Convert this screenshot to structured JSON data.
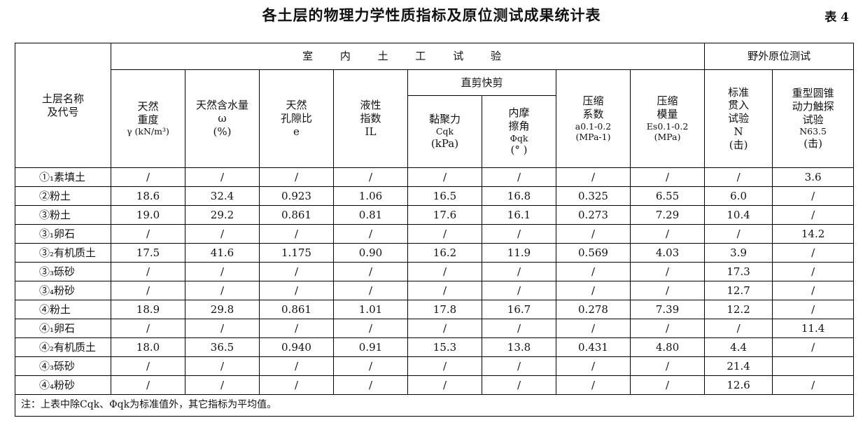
{
  "title": "各土层的物理力学性质指标及原位测试成果统计表",
  "table_number": "表 4",
  "header": {
    "layer_col": [
      "土层名称",
      "及代号"
    ],
    "indoor_group": "室 内 土 工 试 验",
    "field_group": "野外原位测试",
    "shear_group": "直剪快剪",
    "columns": [
      {
        "lines": [
          "天然",
          "重度",
          "γ (kN/m³)"
        ]
      },
      {
        "lines": [
          "天然含水量",
          "ω",
          "(%)"
        ]
      },
      {
        "lines": [
          "天然",
          "孔隙比",
          "e"
        ]
      },
      {
        "lines": [
          "液性",
          "指数",
          "IL"
        ]
      },
      {
        "lines": [
          "黏聚力",
          "Cqk",
          "(kPa)"
        ]
      },
      {
        "lines": [
          "内摩",
          "擦角",
          "Φqk",
          "(° )"
        ]
      },
      {
        "lines": [
          "压缩",
          "系数",
          "a0.1-0.2",
          "(MPa-1)"
        ]
      },
      {
        "lines": [
          "压缩",
          "模量",
          "Es0.1-0.2",
          "(MPa)"
        ]
      },
      {
        "lines": [
          "标准",
          "贯入",
          "试验",
          "N",
          "(击)"
        ]
      },
      {
        "lines": [
          "重型圆锥",
          "动力触探",
          "试验",
          "N63.5",
          "(击)"
        ]
      }
    ]
  },
  "rows": [
    {
      "name": "①₁素填土",
      "values": [
        "/",
        "/",
        "/",
        "/",
        "/",
        "/",
        "/",
        "/",
        "/",
        "3.6"
      ]
    },
    {
      "name": "②粉土",
      "values": [
        "18.6",
        "32.4",
        "0.923",
        "1.06",
        "16.5",
        "16.8",
        "0.325",
        "6.55",
        "6.0",
        "/"
      ]
    },
    {
      "name": "③粉土",
      "values": [
        "19.0",
        "29.2",
        "0.861",
        "0.81",
        "17.6",
        "16.1",
        "0.273",
        "7.29",
        "10.4",
        "/"
      ]
    },
    {
      "name": "③₁卵石",
      "values": [
        "/",
        "/",
        "/",
        "/",
        "/",
        "/",
        "/",
        "/",
        "/",
        "14.2"
      ]
    },
    {
      "name": "③₂有机质土",
      "values": [
        "17.5",
        "41.6",
        "1.175",
        "0.90",
        "16.2",
        "11.9",
        "0.569",
        "4.03",
        "3.9",
        "/"
      ]
    },
    {
      "name": "③₃砾砂",
      "values": [
        "/",
        "/",
        "/",
        "/",
        "/",
        "/",
        "/",
        "/",
        "17.3",
        "/"
      ]
    },
    {
      "name": "③₄粉砂",
      "values": [
        "/",
        "/",
        "/",
        "/",
        "/",
        "/",
        "/",
        "/",
        "12.7",
        "/"
      ]
    },
    {
      "name": "④粉土",
      "values": [
        "18.9",
        "29.8",
        "0.861",
        "1.01",
        "17.8",
        "16.7",
        "0.278",
        "7.39",
        "12.2",
        "/"
      ]
    },
    {
      "name": "④₁卵石",
      "values": [
        "/",
        "/",
        "/",
        "/",
        "/",
        "/",
        "/",
        "/",
        "/",
        "11.4"
      ]
    },
    {
      "name": "④₂有机质土",
      "values": [
        "18.0",
        "36.5",
        "0.940",
        "0.91",
        "15.3",
        "13.8",
        "0.431",
        "4.80",
        "4.4",
        "/"
      ]
    },
    {
      "name": "④₃砾砂",
      "values": [
        "/",
        "/",
        "/",
        "/",
        "/",
        "/",
        "/",
        "/",
        "21.4",
        ""
      ]
    },
    {
      "name": "④₄粉砂",
      "values": [
        "/",
        "/",
        "/",
        "/",
        "/",
        "/",
        "/",
        "/",
        "12.6",
        "/"
      ]
    }
  ],
  "note": "注：上表中除Cqk、Φqk为标准值外，其它指标为平均值。"
}
